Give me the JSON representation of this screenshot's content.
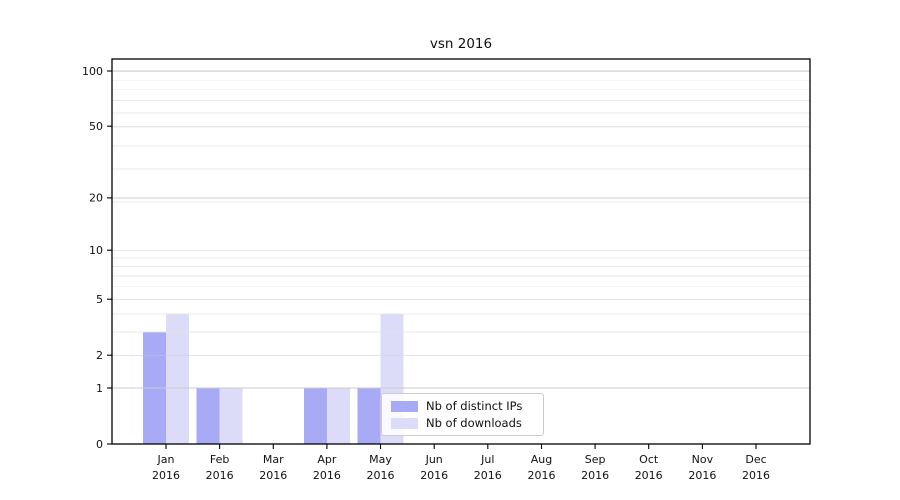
{
  "chart_data": {
    "type": "bar",
    "title": "vsn 2016",
    "categories": [
      "Jan",
      "Feb",
      "Mar",
      "Apr",
      "May",
      "Jun",
      "Jul",
      "Aug",
      "Sep",
      "Oct",
      "Nov",
      "Dec"
    ],
    "category_year": "2016",
    "series": [
      {
        "name": "Nb of distinct IPs",
        "color": "#a9aaf6",
        "values": [
          3,
          1,
          0,
          1,
          1,
          0,
          0,
          0,
          0,
          0,
          0,
          0
        ]
      },
      {
        "name": "Nb of downloads",
        "color": "#dcdcf9",
        "values": [
          4,
          1,
          0,
          1,
          4,
          0,
          0,
          0,
          0,
          0,
          0,
          0
        ]
      }
    ],
    "ylabel": "",
    "xlabel": "",
    "y_axis": {
      "scale": "log10(value+1)",
      "major_ticks": [
        0,
        1,
        2,
        5,
        10,
        20,
        50,
        100
      ],
      "minor_gridlines_at_value_plus_1": [
        2,
        3,
        4,
        5,
        6,
        7,
        8,
        9,
        10,
        20,
        30,
        40,
        50,
        60,
        70,
        80,
        90,
        100
      ],
      "ylim": [
        0,
        117
      ]
    },
    "grid": "on",
    "legend_position": "lower center-right",
    "colors": {
      "major_grid": "#c6c6c6",
      "minor_grid": "#e4e4e4",
      "spine": "#000000",
      "tick_text": "#111111"
    }
  }
}
